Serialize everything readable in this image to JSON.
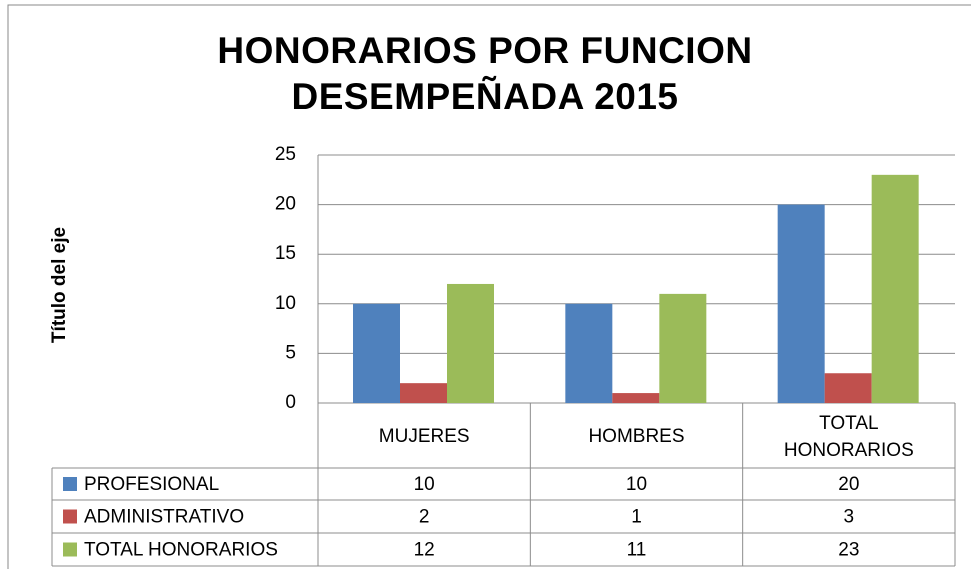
{
  "chart_data": {
    "type": "bar",
    "title": "HONORARIOS POR FUNCION DESEMPEÑADA 2015",
    "y_label": "Título del eje",
    "categories": [
      "MUJERES",
      "HOMBRES",
      "TOTAL HONORARIOS"
    ],
    "series": [
      {
        "name": "PROFESIONAL",
        "color": "#4f81bd",
        "values": [
          10,
          10,
          20
        ]
      },
      {
        "name": "ADMINISTRATIVO",
        "color": "#c0504d",
        "values": [
          2,
          1,
          3
        ]
      },
      {
        "name": "TOTAL HONORARIOS",
        "color": "#9bbb59",
        "values": [
          12,
          11,
          23
        ]
      }
    ],
    "ylim": [
      0,
      25
    ],
    "yticks": [
      0,
      5,
      10,
      15,
      20,
      25
    ],
    "grid": true,
    "data_table": true
  }
}
